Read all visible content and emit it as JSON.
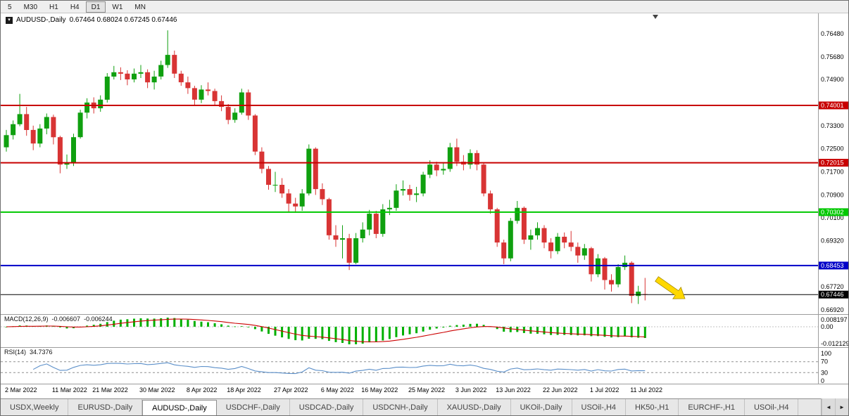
{
  "toolbar": {
    "timeframes": [
      {
        "label": "5",
        "active": false
      },
      {
        "label": "M30",
        "active": false
      },
      {
        "label": "H1",
        "active": false
      },
      {
        "label": "H4",
        "active": false
      },
      {
        "label": "D1",
        "active": true
      },
      {
        "label": "W1",
        "active": false
      },
      {
        "label": "MN",
        "active": false
      }
    ]
  },
  "chart": {
    "title": "AUDUSD-,Daily",
    "ohlc_text": "0.67464 0.68024 0.67245 0.67446"
  },
  "icons": {
    "symbol_marker": "▾",
    "scroll_left": "◄",
    "scroll_right": "►"
  },
  "price_scale": {
    "ticks": [
      "0.76480",
      "0.75680",
      "0.74900",
      "0.73300",
      "0.72500",
      "0.71700",
      "0.70900",
      "0.70100",
      "0.69320",
      "0.67720",
      "0.66920"
    ]
  },
  "hlines": [
    {
      "price": 0.74001,
      "label": "0.74001",
      "color": "#c80000",
      "type": "resistance"
    },
    {
      "price": 0.72015,
      "label": "0.72015",
      "color": "#c80000",
      "type": "resistance"
    },
    {
      "price": 0.70302,
      "label": "0.70302",
      "color": "#00c800",
      "type": "support"
    },
    {
      "price": 0.68453,
      "label": "0.68453",
      "color": "#0000c8",
      "type": "support"
    },
    {
      "price": 0.67446,
      "label": "0.67446",
      "color": "#000000",
      "type": "bid"
    }
  ],
  "indicators": {
    "macd": {
      "label": "MACD(12,26,9)",
      "value_main": "-0.006607",
      "value_signal": "-0.006244",
      "scale_top": "0.008197",
      "scale_zero": "0.00",
      "scale_bottom": "-0.012129"
    },
    "rsi": {
      "label": "RSI(14)",
      "value": "34.7376",
      "scale": [
        "100",
        "70",
        "30",
        "0"
      ],
      "levels": [
        70,
        30
      ]
    }
  },
  "tabs": {
    "items": [
      {
        "label": "USDX,Weekly",
        "active": false
      },
      {
        "label": "EURUSD-,Daily",
        "active": false
      },
      {
        "label": "AUDUSD-,Daily",
        "active": true
      },
      {
        "label": "USDCHF-,Daily",
        "active": false
      },
      {
        "label": "USDCAD-,Daily",
        "active": false
      },
      {
        "label": "USDCNH-,Daily",
        "active": false
      },
      {
        "label": "XAUUSD-,Daily",
        "active": false
      },
      {
        "label": "UKOil-,Daily",
        "active": false
      },
      {
        "label": "USOil-,H4",
        "active": false
      },
      {
        "label": "HK50-,H1",
        "active": false
      },
      {
        "label": "EURCHF-,H1",
        "active": false
      },
      {
        "label": "USOil-,H4",
        "active": false
      }
    ]
  },
  "chart_data": {
    "type": "candlestick",
    "symbol": "AUDUSD-",
    "period": "Daily",
    "last_ohlc": {
      "open": 0.67464,
      "high": 0.68024,
      "low": 0.67245,
      "close": 0.67446
    },
    "ylim": [
      0.6677,
      0.7719
    ],
    "colors": {
      "up": "#0fa00f",
      "down": "#d83434",
      "macd_histogram": "#00b000",
      "macd_signal": "#cc0000",
      "rsi": "#5b8fc9",
      "bid_line": "#333333",
      "arrow": "#ffd800"
    },
    "x_labels": [
      {
        "text": "2 Mar 2022",
        "i": 0
      },
      {
        "text": "11 Mar 2022",
        "i": 7
      },
      {
        "text": "21 Mar 2022",
        "i": 13
      },
      {
        "text": "30 Mar 2022",
        "i": 20
      },
      {
        "text": "8 Apr 2022",
        "i": 27
      },
      {
        "text": "18 Apr 2022",
        "i": 33
      },
      {
        "text": "27 Apr 2022",
        "i": 40
      },
      {
        "text": "6 May 2022",
        "i": 47
      },
      {
        "text": "16 May 2022",
        "i": 53
      },
      {
        "text": "25 May 2022",
        "i": 60
      },
      {
        "text": "3 Jun 2022",
        "i": 67
      },
      {
        "text": "13 Jun 2022",
        "i": 73
      },
      {
        "text": "22 Jun 2022",
        "i": 80
      },
      {
        "text": "1 Jul 2022",
        "i": 87
      },
      {
        "text": "11 Jul 2022",
        "i": 93
      }
    ],
    "candles": [
      [
        0.7255,
        0.7315,
        0.724,
        0.7297
      ],
      [
        0.7297,
        0.7348,
        0.7282,
        0.7335
      ],
      [
        0.7335,
        0.744,
        0.7328,
        0.737
      ],
      [
        0.737,
        0.7395,
        0.7295,
        0.7315
      ],
      [
        0.7315,
        0.733,
        0.7245,
        0.7268
      ],
      [
        0.7268,
        0.7335,
        0.7255,
        0.732
      ],
      [
        0.732,
        0.7372,
        0.73,
        0.736
      ],
      [
        0.736,
        0.7368,
        0.7265,
        0.729
      ],
      [
        0.729,
        0.7295,
        0.7165,
        0.7195
      ],
      [
        0.7195,
        0.723,
        0.718,
        0.72
      ],
      [
        0.72,
        0.7302,
        0.719,
        0.729
      ],
      [
        0.729,
        0.7385,
        0.7285,
        0.7375
      ],
      [
        0.7375,
        0.7425,
        0.7355,
        0.741
      ],
      [
        0.741,
        0.7428,
        0.7372,
        0.739
      ],
      [
        0.739,
        0.7435,
        0.7378,
        0.742
      ],
      [
        0.742,
        0.7512,
        0.741,
        0.75
      ],
      [
        0.75,
        0.7537,
        0.749,
        0.7515
      ],
      [
        0.7515,
        0.7532,
        0.7488,
        0.751
      ],
      [
        0.751,
        0.7522,
        0.747,
        0.749
      ],
      [
        0.749,
        0.7528,
        0.748,
        0.751
      ],
      [
        0.751,
        0.754,
        0.7495,
        0.7515
      ],
      [
        0.7515,
        0.7525,
        0.746,
        0.748
      ],
      [
        0.748,
        0.752,
        0.7455,
        0.75
      ],
      [
        0.75,
        0.7555,
        0.749,
        0.754
      ],
      [
        0.754,
        0.766,
        0.753,
        0.7575
      ],
      [
        0.7575,
        0.759,
        0.7495,
        0.751
      ],
      [
        0.751,
        0.752,
        0.7468,
        0.748
      ],
      [
        0.748,
        0.75,
        0.744,
        0.746
      ],
      [
        0.746,
        0.7468,
        0.74,
        0.742
      ],
      [
        0.742,
        0.747,
        0.7408,
        0.7455
      ],
      [
        0.7455,
        0.748,
        0.7435,
        0.745
      ],
      [
        0.745,
        0.7458,
        0.7398,
        0.7415
      ],
      [
        0.7415,
        0.7435,
        0.738,
        0.7395
      ],
      [
        0.7395,
        0.7405,
        0.7335,
        0.735
      ],
      [
        0.735,
        0.739,
        0.734,
        0.7375
      ],
      [
        0.7375,
        0.7458,
        0.7368,
        0.7445
      ],
      [
        0.7445,
        0.7455,
        0.735,
        0.7365
      ],
      [
        0.7365,
        0.737,
        0.7228,
        0.724
      ],
      [
        0.724,
        0.7255,
        0.7165,
        0.718
      ],
      [
        0.718,
        0.719,
        0.7108,
        0.7125
      ],
      [
        0.7125,
        0.717,
        0.71,
        0.7125
      ],
      [
        0.7125,
        0.7148,
        0.708,
        0.7095
      ],
      [
        0.7095,
        0.711,
        0.703,
        0.706
      ],
      [
        0.706,
        0.708,
        0.7028,
        0.705
      ],
      [
        0.705,
        0.711,
        0.7035,
        0.7095
      ],
      [
        0.7095,
        0.7265,
        0.7088,
        0.725
      ],
      [
        0.725,
        0.7255,
        0.709,
        0.711
      ],
      [
        0.711,
        0.713,
        0.7055,
        0.7075
      ],
      [
        0.7075,
        0.708,
        0.6935,
        0.695
      ],
      [
        0.695,
        0.6985,
        0.691,
        0.6935
      ],
      [
        0.6935,
        0.6985,
        0.687,
        0.694
      ],
      [
        0.694,
        0.6955,
        0.683,
        0.6855
      ],
      [
        0.6855,
        0.6958,
        0.685,
        0.694
      ],
      [
        0.694,
        0.6995,
        0.6925,
        0.697
      ],
      [
        0.697,
        0.7038,
        0.695,
        0.7025
      ],
      [
        0.7025,
        0.7035,
        0.694,
        0.6955
      ],
      [
        0.6955,
        0.7058,
        0.6945,
        0.704
      ],
      [
        0.704,
        0.7073,
        0.702,
        0.7045
      ],
      [
        0.7045,
        0.7127,
        0.7035,
        0.7105
      ],
      [
        0.7105,
        0.714,
        0.7088,
        0.711
      ],
      [
        0.711,
        0.7125,
        0.707,
        0.709
      ],
      [
        0.709,
        0.7118,
        0.7065,
        0.7095
      ],
      [
        0.7095,
        0.717,
        0.7085,
        0.716
      ],
      [
        0.716,
        0.721,
        0.7148,
        0.7195
      ],
      [
        0.7195,
        0.7205,
        0.7155,
        0.7175
      ],
      [
        0.7175,
        0.7203,
        0.716,
        0.718
      ],
      [
        0.718,
        0.727,
        0.717,
        0.7255
      ],
      [
        0.7255,
        0.7285,
        0.719,
        0.7205
      ],
      [
        0.7205,
        0.7228,
        0.7175,
        0.7195
      ],
      [
        0.7195,
        0.7248,
        0.718,
        0.7235
      ],
      [
        0.7235,
        0.7245,
        0.7175,
        0.7195
      ],
      [
        0.7195,
        0.72,
        0.7085,
        0.7095
      ],
      [
        0.7095,
        0.7105,
        0.7025,
        0.704
      ],
      [
        0.704,
        0.7045,
        0.691,
        0.6925
      ],
      [
        0.6925,
        0.6935,
        0.685,
        0.687
      ],
      [
        0.687,
        0.701,
        0.686,
        0.7
      ],
      [
        0.7,
        0.7069,
        0.699,
        0.7045
      ],
      [
        0.7045,
        0.705,
        0.692,
        0.6935
      ],
      [
        0.6935,
        0.697,
        0.69,
        0.695
      ],
      [
        0.695,
        0.6995,
        0.6935,
        0.6975
      ],
      [
        0.6975,
        0.6985,
        0.6905,
        0.6925
      ],
      [
        0.6925,
        0.694,
        0.687,
        0.6895
      ],
      [
        0.6895,
        0.6958,
        0.6885,
        0.6945
      ],
      [
        0.6945,
        0.696,
        0.6905,
        0.6925
      ],
      [
        0.6925,
        0.6965,
        0.6895,
        0.691
      ],
      [
        0.691,
        0.6925,
        0.6855,
        0.688
      ],
      [
        0.688,
        0.692,
        0.6865,
        0.6905
      ],
      [
        0.6905,
        0.691,
        0.679,
        0.6815
      ],
      [
        0.6815,
        0.6885,
        0.6805,
        0.687
      ],
      [
        0.687,
        0.6875,
        0.6762,
        0.6795
      ],
      [
        0.6795,
        0.6815,
        0.6755,
        0.678
      ],
      [
        0.678,
        0.685,
        0.677,
        0.684
      ],
      [
        0.684,
        0.688,
        0.683,
        0.6855
      ],
      [
        0.6855,
        0.686,
        0.6715,
        0.674
      ],
      [
        0.674,
        0.6775,
        0.6712,
        0.6755
      ],
      [
        0.67464,
        0.68024,
        0.67245,
        0.67446
      ]
    ]
  }
}
